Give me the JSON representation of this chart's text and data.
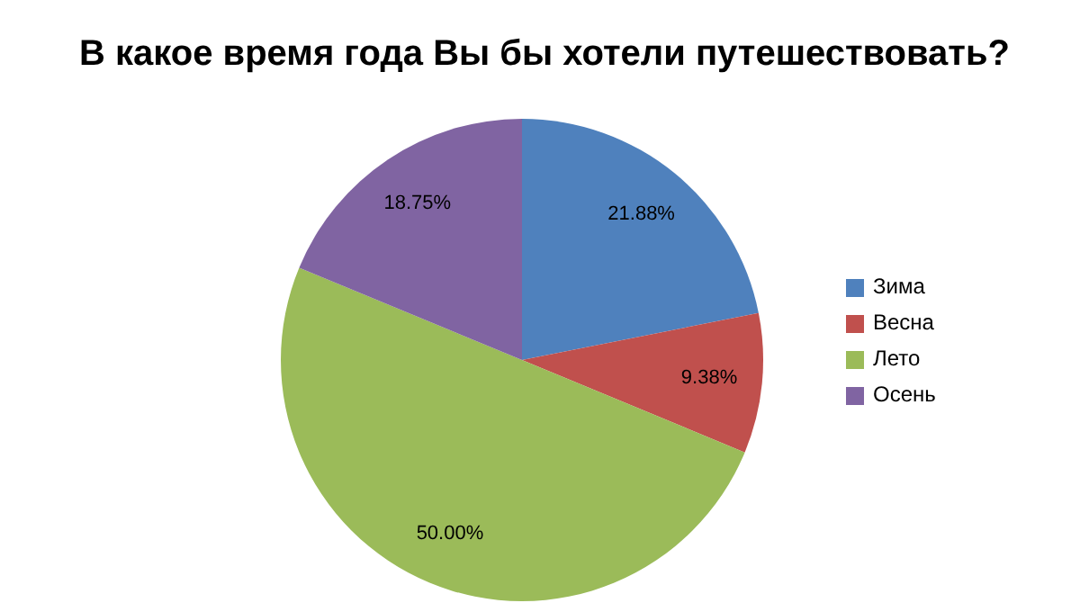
{
  "chart_data": {
    "type": "pie",
    "title": "В какое время года Вы бы хотели путешествовать?",
    "categories": [
      "Зима",
      "Весна",
      "Лето",
      "Осень"
    ],
    "values": [
      21.88,
      9.38,
      50.0,
      18.75
    ],
    "value_labels": [
      "21.88%",
      "9.38%",
      "50.00%",
      "18.75%"
    ],
    "colors": [
      "#4f81bd",
      "#c0504d",
      "#9bbb59",
      "#8064a2"
    ],
    "legend": "right"
  }
}
